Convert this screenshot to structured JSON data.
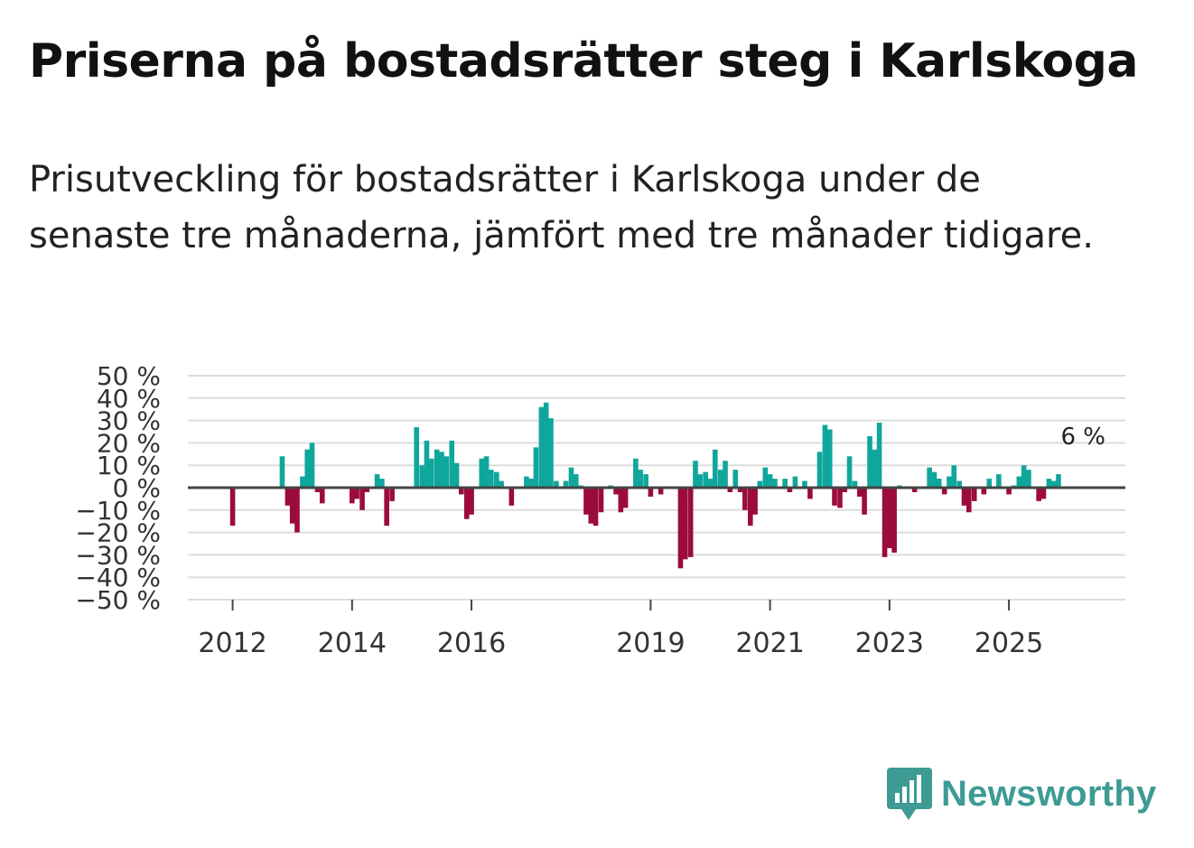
{
  "title": "Priserna på bostadsrätter steg i Karlskoga",
  "subtitle": "Prisutveckling för bostadsrätter i Karlskoga under de senaste tre månaderna, jämfört med tre månader tidigare.",
  "brand": {
    "name": "Newsworthy",
    "icon": "newsworthy-logo-icon",
    "color": "#3d9b94"
  },
  "colors": {
    "positive": "#0fa69c",
    "negative": "#9b0b3c",
    "zero_line": "#444444",
    "grid": "#dddddd"
  },
  "chart_data": {
    "type": "bar",
    "title": "Priserna på bostadsrätter steg i Karlskoga",
    "xlabel": "",
    "ylabel": "",
    "ylim": [
      -50,
      50
    ],
    "yticks": [
      50,
      40,
      30,
      20,
      10,
      0,
      -10,
      -20,
      -30,
      -40,
      -50
    ],
    "ytick_labels": [
      "50 %",
      "40 %",
      "30 %",
      "20 %",
      "10 %",
      "0 %",
      "−10 %",
      "−20 %",
      "−30 %",
      "−40 %",
      "−50 %"
    ],
    "xlim": [
      2011.25,
      2026.95
    ],
    "xticks": [
      2012,
      2014,
      2016,
      2019,
      2021,
      2023,
      2025
    ],
    "xtick_labels": [
      "2012",
      "2014",
      "2016",
      "2019",
      "2021",
      "2023",
      "2025"
    ],
    "annotation": {
      "label": "6 %",
      "value": 6
    },
    "series": [
      {
        "name": "Prisutveckling",
        "points": [
          [
            2012.0,
            -17
          ],
          [
            2012.83,
            14
          ],
          [
            2012.92,
            -8
          ],
          [
            2013.0,
            -16
          ],
          [
            2013.08,
            -20
          ],
          [
            2013.17,
            5
          ],
          [
            2013.25,
            17
          ],
          [
            2013.33,
            20
          ],
          [
            2013.42,
            -2
          ],
          [
            2013.5,
            -7
          ],
          [
            2014.0,
            -7
          ],
          [
            2014.08,
            -5
          ],
          [
            2014.17,
            -10
          ],
          [
            2014.25,
            -2
          ],
          [
            2014.42,
            6
          ],
          [
            2014.5,
            4
          ],
          [
            2014.58,
            -17
          ],
          [
            2014.67,
            -6
          ],
          [
            2015.08,
            27
          ],
          [
            2015.17,
            10
          ],
          [
            2015.25,
            21
          ],
          [
            2015.33,
            13
          ],
          [
            2015.42,
            17
          ],
          [
            2015.5,
            16
          ],
          [
            2015.58,
            14
          ],
          [
            2015.67,
            21
          ],
          [
            2015.75,
            11
          ],
          [
            2015.83,
            -3
          ],
          [
            2015.92,
            -14
          ],
          [
            2016.0,
            -12
          ],
          [
            2016.17,
            13
          ],
          [
            2016.25,
            14
          ],
          [
            2016.33,
            8
          ],
          [
            2016.42,
            7
          ],
          [
            2016.5,
            3
          ],
          [
            2016.67,
            -8
          ],
          [
            2016.92,
            5
          ],
          [
            2017.0,
            4
          ],
          [
            2017.08,
            18
          ],
          [
            2017.17,
            36
          ],
          [
            2017.25,
            38
          ],
          [
            2017.33,
            31
          ],
          [
            2017.42,
            3
          ],
          [
            2017.58,
            3
          ],
          [
            2017.67,
            9
          ],
          [
            2017.75,
            6
          ],
          [
            2017.83,
            1
          ],
          [
            2017.92,
            -12
          ],
          [
            2018.0,
            -16
          ],
          [
            2018.08,
            -17
          ],
          [
            2018.17,
            -11
          ],
          [
            2018.33,
            1
          ],
          [
            2018.42,
            -3
          ],
          [
            2018.5,
            -11
          ],
          [
            2018.58,
            -9
          ],
          [
            2018.75,
            13
          ],
          [
            2018.83,
            8
          ],
          [
            2018.92,
            6
          ],
          [
            2019.0,
            -4
          ],
          [
            2019.17,
            -3
          ],
          [
            2019.5,
            -36
          ],
          [
            2019.58,
            -32
          ],
          [
            2019.67,
            -31
          ],
          [
            2019.75,
            12
          ],
          [
            2019.83,
            6
          ],
          [
            2019.92,
            7
          ],
          [
            2020.0,
            4
          ],
          [
            2020.08,
            17
          ],
          [
            2020.17,
            8
          ],
          [
            2020.25,
            12
          ],
          [
            2020.33,
            -2
          ],
          [
            2020.42,
            8
          ],
          [
            2020.5,
            -2
          ],
          [
            2020.58,
            -10
          ],
          [
            2020.67,
            -17
          ],
          [
            2020.75,
            -12
          ],
          [
            2020.83,
            3
          ],
          [
            2020.92,
            9
          ],
          [
            2021.0,
            6
          ],
          [
            2021.08,
            4
          ],
          [
            2021.25,
            4
          ],
          [
            2021.33,
            -2
          ],
          [
            2021.42,
            5
          ],
          [
            2021.58,
            3
          ],
          [
            2021.67,
            -5
          ],
          [
            2021.83,
            16
          ],
          [
            2021.92,
            28
          ],
          [
            2022.0,
            26
          ],
          [
            2022.08,
            -8
          ],
          [
            2022.17,
            -9
          ],
          [
            2022.25,
            -2
          ],
          [
            2022.33,
            14
          ],
          [
            2022.42,
            3
          ],
          [
            2022.5,
            -4
          ],
          [
            2022.58,
            -12
          ],
          [
            2022.67,
            23
          ],
          [
            2022.75,
            17
          ],
          [
            2022.83,
            29
          ],
          [
            2022.92,
            -31
          ],
          [
            2023.0,
            -27
          ],
          [
            2023.08,
            -29
          ],
          [
            2023.17,
            1
          ],
          [
            2023.42,
            -2
          ],
          [
            2023.67,
            9
          ],
          [
            2023.75,
            7
          ],
          [
            2023.83,
            4
          ],
          [
            2023.92,
            -3
          ],
          [
            2024.0,
            5
          ],
          [
            2024.08,
            10
          ],
          [
            2024.17,
            3
          ],
          [
            2024.25,
            -8
          ],
          [
            2024.33,
            -11
          ],
          [
            2024.42,
            -6
          ],
          [
            2024.58,
            -3
          ],
          [
            2024.67,
            4
          ],
          [
            2024.83,
            6
          ],
          [
            2025.0,
            -3
          ],
          [
            2025.08,
            1
          ],
          [
            2025.17,
            5
          ],
          [
            2025.25,
            10
          ],
          [
            2025.33,
            8
          ],
          [
            2025.5,
            -6
          ],
          [
            2025.58,
            -5
          ],
          [
            2025.67,
            4
          ],
          [
            2025.75,
            3
          ],
          [
            2025.83,
            6
          ]
        ]
      }
    ]
  }
}
